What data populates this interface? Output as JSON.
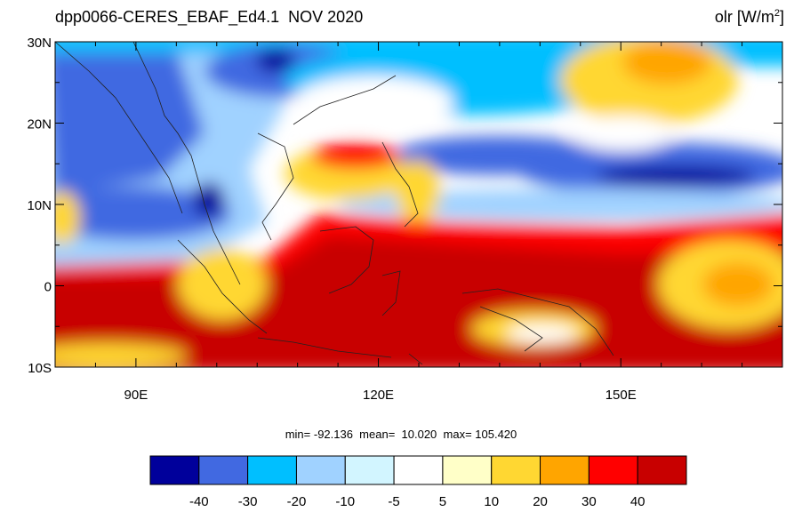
{
  "title": {
    "left": "dpp0066-CERES_EBAF_Ed4.1  NOV 2020",
    "right_var": "olr [W/m",
    "right_sup": "2",
    "right_close": "]"
  },
  "map": {
    "lon_range": [
      80,
      170
    ],
    "lat_range": [
      -10,
      30
    ],
    "lat_labels": [
      {
        "lat": 30,
        "label": "30N"
      },
      {
        "lat": 20,
        "label": "20N"
      },
      {
        "lat": 10,
        "label": "10N"
      },
      {
        "lat": 0,
        "label": "0"
      },
      {
        "lat": -10,
        "label": "10S"
      }
    ],
    "lon_labels": [
      {
        "lon": 90,
        "label": "90E"
      },
      {
        "lon": 120,
        "label": "120E"
      },
      {
        "lon": 150,
        "label": "150E"
      }
    ],
    "minor_lon": [
      80,
      85,
      95,
      100,
      105,
      110,
      115,
      125,
      130,
      135,
      140,
      145,
      155,
      160,
      165,
      170
    ],
    "minor_lat": [
      25,
      15,
      5,
      -5
    ]
  },
  "stats": "min= -92.136  mean=  10.020  max= 105.420",
  "colorbar": {
    "colors": [
      "#00009b",
      "#4169e1",
      "#00bfff",
      "#a0d2ff",
      "#d2f5ff",
      "#ffffff",
      "#ffffc8",
      "#ffd732",
      "#ffa500",
      "#ff0000",
      "#c80000"
    ],
    "labels": [
      "-40",
      "-30",
      "-20",
      "-10",
      "-5",
      "5",
      "10",
      "20",
      "30",
      "40"
    ]
  }
}
